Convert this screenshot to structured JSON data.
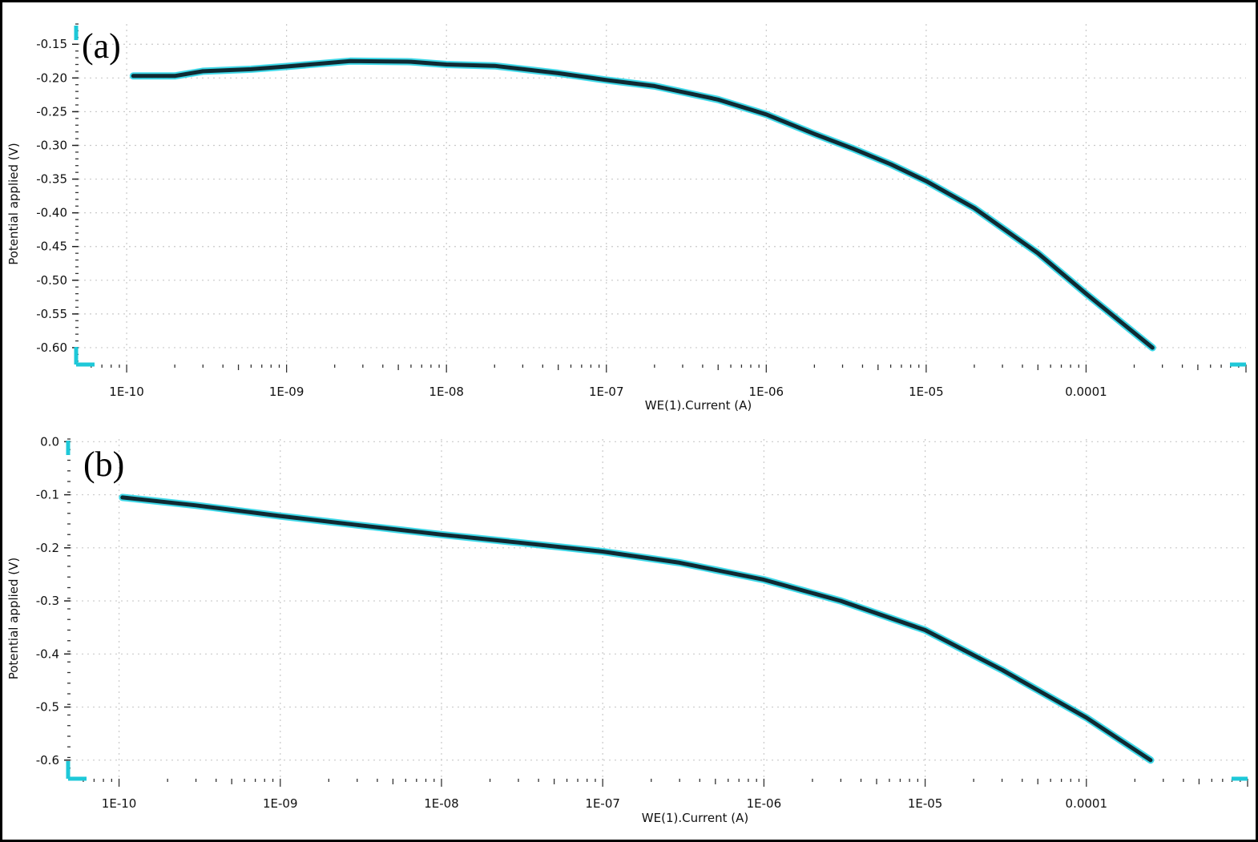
{
  "colors": {
    "curve": "#0f2a33",
    "curve_glow": "#2ad4e6",
    "axis_accent": "#1ec8d8",
    "grid": "#c9c9c9"
  },
  "chart_data": [
    {
      "type": "line",
      "panel_label": "(a)",
      "xlabel": "WE(1).Current (A)",
      "ylabel": "Potential applied (V)",
      "x_scale": "log",
      "xlim": [
        5e-11,
        0.001
      ],
      "ylim": [
        -0.625,
        -0.12
      ],
      "x_ticks": [
        1e-10,
        1e-09,
        1e-08,
        1e-07,
        1e-06,
        1e-05,
        0.0001
      ],
      "x_tick_labels": [
        "1E-10",
        "1E-09",
        "1E-08",
        "1E-07",
        "1E-06",
        "1E-05",
        "0.0001"
      ],
      "y_ticks": [
        -0.15,
        -0.2,
        -0.25,
        -0.3,
        -0.35,
        -0.4,
        -0.45,
        -0.5,
        -0.55,
        -0.6
      ],
      "y_tick_labels": [
        "-0.15",
        "-0.20",
        "-0.25",
        "-0.30",
        "-0.35",
        "-0.40",
        "-0.45",
        "-0.50",
        "-0.55",
        "-0.60"
      ],
      "grid": true,
      "series": [
        {
          "x": [
            1.1e-10,
            2e-10,
            3e-10,
            6e-10,
            1e-09,
            2.5e-09,
            6e-09,
            1e-08,
            2e-08,
            5e-08,
            1e-07,
            2e-07,
            5e-07,
            1e-06,
            2e-06,
            3.5e-06,
            6e-06,
            1e-05,
            2e-05,
            5e-05,
            0.0001,
            0.00026
          ],
          "y": [
            -0.197,
            -0.197,
            -0.19,
            -0.187,
            -0.183,
            -0.175,
            -0.176,
            -0.18,
            -0.182,
            -0.193,
            -0.203,
            -0.212,
            -0.232,
            -0.254,
            -0.283,
            -0.305,
            -0.328,
            -0.353,
            -0.393,
            -0.46,
            -0.52,
            -0.6
          ]
        }
      ]
    },
    {
      "type": "line",
      "panel_label": "(b)",
      "xlabel": "WE(1).Current (A)",
      "ylabel": "Potential applied (V)",
      "x_scale": "log",
      "xlim": [
        5e-11,
        0.001
      ],
      "ylim": [
        -0.635,
        0.005
      ],
      "x_ticks": [
        1e-10,
        1e-09,
        1e-08,
        1e-07,
        1e-06,
        1e-05,
        0.0001
      ],
      "x_tick_labels": [
        "1E-10",
        "1E-09",
        "1E-08",
        "1E-07",
        "1E-06",
        "1E-05",
        "0.0001"
      ],
      "y_ticks": [
        0.0,
        -0.1,
        -0.2,
        -0.3,
        -0.4,
        -0.5,
        -0.6
      ],
      "y_tick_labels": [
        "0.0",
        "-0.1",
        "-0.2",
        "-0.3",
        "-0.4",
        "-0.5",
        "-0.6"
      ],
      "grid": true,
      "series": [
        {
          "x": [
            1.05e-10,
            3e-10,
            1e-09,
            3e-09,
            1e-08,
            3e-08,
            1e-07,
            3e-07,
            1e-06,
            3e-06,
            1e-05,
            3e-05,
            0.0001,
            0.00025
          ],
          "y": [
            -0.105,
            -0.12,
            -0.14,
            -0.157,
            -0.175,
            -0.19,
            -0.207,
            -0.228,
            -0.26,
            -0.3,
            -0.355,
            -0.43,
            -0.52,
            -0.6
          ]
        }
      ]
    }
  ]
}
